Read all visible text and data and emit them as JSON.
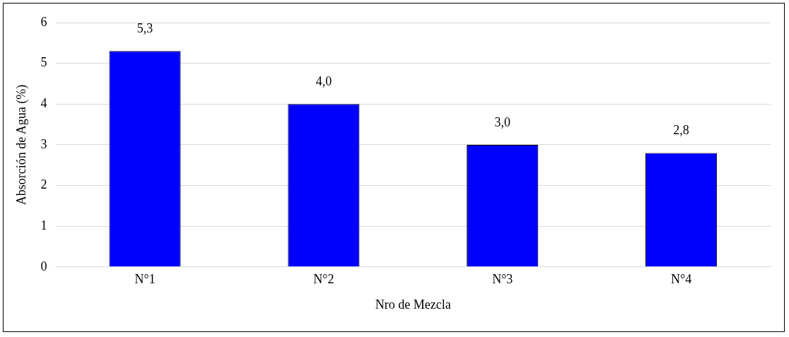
{
  "chart_data": {
    "type": "bar",
    "xlabel": "Nro de Mezcla",
    "ylabel": "Absorción de Agua (%)",
    "categories": [
      "N°1",
      "N°2",
      "N°3",
      "N°4"
    ],
    "values": [
      5.3,
      4.0,
      3.0,
      2.8
    ],
    "color": "#0000ff",
    "value_labels": [
      "5,3",
      "4,0",
      "3,0",
      "2,8"
    ],
    "ylim": [
      0,
      6
    ],
    "yticks": [
      0,
      1,
      2,
      3,
      4,
      5,
      6
    ],
    "grid": "y",
    "legend": false
  }
}
